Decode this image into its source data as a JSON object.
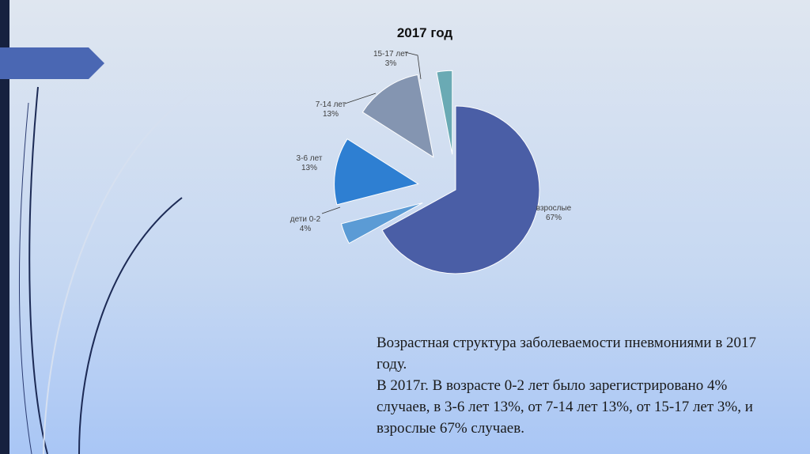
{
  "chart_data": {
    "type": "pie",
    "title": "2017 год",
    "categories": [
      "взрослые",
      "дети 0-2",
      "3-6 лет",
      "7-14 лет",
      "15-17 лет"
    ],
    "values": [
      67,
      4,
      13,
      13,
      3
    ],
    "value_labels": [
      "67%",
      "4%",
      "13%",
      "13%",
      "3%"
    ],
    "colors": [
      "#4a5ea6",
      "#5b9bd5",
      "#2e7fd2",
      "#8495b1",
      "#6aaab4"
    ]
  },
  "text_block": {
    "paragraphs": [
      "Возрастная структура заболеваемости пневмониями в 2017 году.",
      "В 2017г. В возрасте 0-2 лет было зарегистрировано 4% случаев, в 3-6 лет 13%, от 7-14 лет 13%, от 15-17 лет 3%, и взрослые 67% случаев."
    ]
  }
}
